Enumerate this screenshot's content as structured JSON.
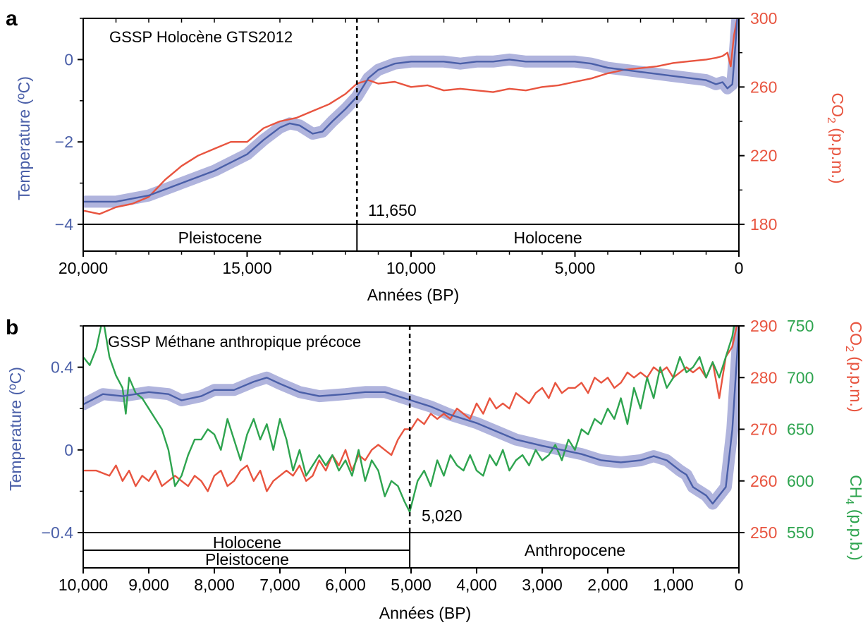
{
  "chart_data": [
    {
      "panel": "a",
      "type": "line",
      "annotation": "GSSP Holocène GTS2012",
      "marker_x": 11650,
      "marker_label": "11,650",
      "xlabel": "Années (BP)",
      "xlim": [
        20000,
        0
      ],
      "xticks": [
        20000,
        15000,
        10000,
        5000,
        0
      ],
      "xtick_labels": [
        "20,000",
        "15,000",
        "10,000",
        "5,000",
        "0"
      ],
      "left_axis": {
        "label": "Temperature (ºC)",
        "color": "#4a5fa8",
        "lim": [
          -4,
          1
        ],
        "ticks": [
          -4,
          -2,
          0
        ],
        "tick_labels": [
          "−4",
          "−2",
          "0"
        ]
      },
      "right_axis": {
        "label_main": "CO",
        "label_sub": "2",
        "label_rest": " (p.p.m.)",
        "color": "#e8543f",
        "lim": [
          180,
          300
        ],
        "ticks": [
          180,
          220,
          260,
          300
        ],
        "tick_labels": [
          "180",
          "220",
          "260",
          "300"
        ]
      },
      "eras": [
        {
          "name": "Pleistocene",
          "from": 20000,
          "to": 11650
        },
        {
          "name": "Holocene",
          "from": 11650,
          "to": 0
        }
      ],
      "series": [
        {
          "name": "Temperature",
          "axis": "left",
          "color": "#4a5fa8",
          "band_color": "#a7acd9",
          "x": [
            20000,
            19000,
            18000,
            17000,
            16000,
            15000,
            14500,
            14000,
            13700,
            13400,
            13000,
            12700,
            12400,
            12000,
            11650,
            11300,
            11000,
            10500,
            10000,
            9500,
            9000,
            8500,
            8000,
            7500,
            7000,
            6500,
            6000,
            5500,
            5000,
            4500,
            4000,
            3500,
            3000,
            2500,
            2000,
            1500,
            1000,
            700,
            500,
            350,
            200,
            100,
            50
          ],
          "y": [
            -3.45,
            -3.45,
            -3.3,
            -3.0,
            -2.7,
            -2.3,
            -1.95,
            -1.65,
            -1.55,
            -1.6,
            -1.8,
            -1.75,
            -1.5,
            -1.2,
            -0.9,
            -0.45,
            -0.25,
            -0.1,
            -0.05,
            -0.05,
            -0.05,
            -0.1,
            -0.05,
            -0.05,
            0.0,
            -0.05,
            -0.05,
            -0.05,
            -0.05,
            -0.1,
            -0.2,
            -0.25,
            -0.3,
            -0.35,
            -0.4,
            -0.45,
            -0.5,
            -0.6,
            -0.55,
            -0.7,
            -0.6,
            0.4,
            1.0
          ]
        },
        {
          "name": "CO2",
          "axis": "right",
          "color": "#e8543f",
          "x": [
            20000,
            19500,
            19000,
            18500,
            18000,
            17500,
            17000,
            16500,
            16000,
            15500,
            15000,
            14500,
            14000,
            13500,
            13000,
            12500,
            12000,
            11650,
            11300,
            11000,
            10500,
            10000,
            9500,
            9000,
            8500,
            8000,
            7500,
            7000,
            6500,
            6000,
            5500,
            5000,
            4500,
            4000,
            3500,
            3000,
            2500,
            2000,
            1500,
            1000,
            700,
            500,
            350,
            250,
            150,
            50
          ],
          "y": [
            188,
            186,
            190,
            192,
            196,
            206,
            214,
            220,
            224,
            228,
            228,
            236,
            240,
            242,
            246,
            250,
            256,
            262,
            264,
            262,
            263,
            260,
            261,
            258,
            259,
            258,
            257,
            259,
            258,
            260,
            261,
            263,
            265,
            268,
            270,
            271,
            272,
            274,
            275,
            276,
            277,
            278,
            280,
            272,
            290,
            300
          ]
        }
      ]
    },
    {
      "panel": "b",
      "type": "line",
      "annotation": "GSSP Méthane anthropique précoce",
      "marker_x": 5020,
      "marker_label": "5,020",
      "xlabel": "Années (BP)",
      "xlim": [
        10000,
        0
      ],
      "xticks": [
        10000,
        9000,
        8000,
        7000,
        6000,
        5000,
        4000,
        3000,
        2000,
        1000,
        0
      ],
      "xtick_labels": [
        "10,000",
        "9,000",
        "8,000",
        "7,000",
        "6,000",
        "5,000",
        "4,000",
        "3,000",
        "2,000",
        "1,000",
        "0"
      ],
      "left_axis": {
        "label": "Temperature (ºC)",
        "color": "#4a5fa8",
        "lim": [
          -0.4,
          0.6
        ],
        "ticks": [
          -0.4,
          0,
          0.4
        ],
        "tick_labels": [
          "−0.4",
          "0",
          "0.4"
        ]
      },
      "right_axis": {
        "label_main": "CO",
        "label_sub": "2",
        "label_rest": " (p.p.m.)",
        "color": "#e8543f",
        "lim": [
          250,
          290
        ],
        "ticks": [
          250,
          260,
          270,
          280,
          290
        ],
        "tick_labels": [
          "250",
          "260",
          "270",
          "280",
          "290"
        ]
      },
      "right_axis2": {
        "label_main": "CH",
        "label_sub": "4",
        "label_rest": " (p.p.b.)",
        "color": "#2ea44f",
        "lim": [
          550,
          750
        ],
        "ticks": [
          550,
          600,
          650,
          700,
          750
        ],
        "tick_labels": [
          "550",
          "600",
          "650",
          "700",
          "750"
        ]
      },
      "eras": [
        {
          "name": "Holocene",
          "from": 10000,
          "to": 5000,
          "row": "upper"
        },
        {
          "name": "Pleistocene",
          "from": 10000,
          "to": 5000,
          "row": "lower"
        },
        {
          "name": "Anthropocene",
          "from": 5000,
          "to": 0,
          "row": "full"
        }
      ],
      "series": [
        {
          "name": "Temperature",
          "axis": "left",
          "color": "#4a5fa8",
          "band_color": "#a7acd9",
          "x": [
            10000,
            9700,
            9400,
            9000,
            8700,
            8500,
            8200,
            8000,
            7700,
            7400,
            7200,
            7000,
            6700,
            6400,
            6000,
            5700,
            5400,
            5000,
            4700,
            4400,
            4000,
            3700,
            3400,
            3000,
            2700,
            2400,
            2100,
            1800,
            1500,
            1300,
            1100,
            900,
            800,
            700,
            600,
            500,
            400,
            300,
            200,
            100,
            0
          ],
          "y": [
            0.22,
            0.27,
            0.26,
            0.28,
            0.27,
            0.24,
            0.26,
            0.29,
            0.29,
            0.33,
            0.35,
            0.32,
            0.28,
            0.26,
            0.27,
            0.28,
            0.28,
            0.24,
            0.21,
            0.17,
            0.13,
            0.09,
            0.05,
            0.02,
            0.0,
            -0.02,
            -0.05,
            -0.06,
            -0.05,
            -0.03,
            -0.05,
            -0.1,
            -0.12,
            -0.18,
            -0.2,
            -0.22,
            -0.26,
            -0.22,
            -0.18,
            0.1,
            0.6
          ]
        },
        {
          "name": "CO2",
          "axis": "right",
          "color": "#e8543f",
          "x": [
            10000,
            9800,
            9600,
            9500,
            9400,
            9300,
            9200,
            9100,
            9000,
            8900,
            8800,
            8700,
            8600,
            8500,
            8400,
            8300,
            8200,
            8100,
            8000,
            7900,
            7800,
            7700,
            7600,
            7500,
            7400,
            7300,
            7200,
            7100,
            7000,
            6900,
            6800,
            6700,
            6600,
            6500,
            6400,
            6300,
            6200,
            6100,
            6000,
            5900,
            5800,
            5700,
            5600,
            5500,
            5400,
            5300,
            5200,
            5100,
            5000,
            4900,
            4800,
            4700,
            4600,
            4500,
            4400,
            4300,
            4200,
            4100,
            4000,
            3900,
            3800,
            3700,
            3600,
            3500,
            3400,
            3300,
            3200,
            3100,
            3000,
            2900,
            2800,
            2700,
            2600,
            2500,
            2400,
            2300,
            2200,
            2100,
            2000,
            1900,
            1800,
            1700,
            1600,
            1500,
            1400,
            1300,
            1200,
            1100,
            1000,
            900,
            800,
            700,
            600,
            500,
            400,
            300,
            200,
            100,
            0
          ],
          "y": [
            262,
            262,
            261,
            263,
            260,
            262,
            259,
            261,
            260,
            262,
            259,
            260,
            261,
            260,
            259,
            261,
            260,
            258,
            261,
            262,
            259,
            260,
            262,
            263,
            260,
            262,
            258,
            260,
            261,
            262,
            261,
            263,
            260,
            261,
            264,
            262,
            265,
            263,
            266,
            262,
            265,
            264,
            266,
            267,
            266,
            265,
            268,
            270,
            270,
            272,
            271,
            273,
            272,
            273,
            272,
            274,
            273,
            272,
            275,
            273,
            276,
            274,
            275,
            274,
            277,
            276,
            275,
            277,
            278,
            276,
            279,
            277,
            278,
            278,
            279,
            277,
            280,
            279,
            280,
            278,
            279,
            281,
            280,
            281,
            280,
            282,
            281,
            282,
            280,
            281,
            282,
            281,
            282,
            280,
            283,
            276,
            284,
            286,
            292
          ]
        },
        {
          "name": "CH4",
          "axis": "right2",
          "color": "#2ea44f",
          "x": [
            10000,
            9900,
            9800,
            9700,
            9600,
            9500,
            9400,
            9350,
            9300,
            9200,
            9100,
            9000,
            8900,
            8800,
            8700,
            8600,
            8500,
            8400,
            8300,
            8200,
            8100,
            8000,
            7900,
            7800,
            7700,
            7600,
            7500,
            7400,
            7300,
            7200,
            7100,
            7000,
            6900,
            6800,
            6700,
            6600,
            6500,
            6400,
            6300,
            6200,
            6100,
            6000,
            5900,
            5800,
            5700,
            5600,
            5500,
            5400,
            5300,
            5200,
            5100,
            5020,
            4900,
            4800,
            4700,
            4600,
            4500,
            4400,
            4300,
            4200,
            4100,
            4000,
            3900,
            3800,
            3700,
            3600,
            3500,
            3400,
            3300,
            3200,
            3100,
            3000,
            2900,
            2800,
            2700,
            2600,
            2500,
            2400,
            2300,
            2200,
            2100,
            2000,
            1900,
            1800,
            1700,
            1600,
            1500,
            1400,
            1300,
            1200,
            1100,
            1000,
            900,
            800,
            700,
            600,
            500,
            400,
            300,
            200,
            100,
            0
          ],
          "y": [
            720,
            712,
            728,
            758,
            720,
            702,
            690,
            665,
            700,
            685,
            680,
            670,
            660,
            650,
            630,
            595,
            605,
            625,
            640,
            640,
            650,
            645,
            630,
            660,
            640,
            620,
            645,
            660,
            640,
            655,
            630,
            660,
            640,
            610,
            630,
            605,
            615,
            625,
            615,
            625,
            610,
            620,
            605,
            630,
            600,
            620,
            610,
            585,
            600,
            595,
            580,
            570,
            600,
            610,
            595,
            620,
            605,
            625,
            615,
            610,
            625,
            610,
            605,
            625,
            615,
            630,
            610,
            620,
            625,
            615,
            630,
            620,
            625,
            635,
            620,
            640,
            630,
            650,
            645,
            660,
            655,
            670,
            660,
            680,
            655,
            690,
            670,
            700,
            680,
            710,
            690,
            700,
            720,
            705,
            710,
            720,
            700,
            715,
            700,
            720,
            740,
            780
          ]
        }
      ]
    }
  ]
}
